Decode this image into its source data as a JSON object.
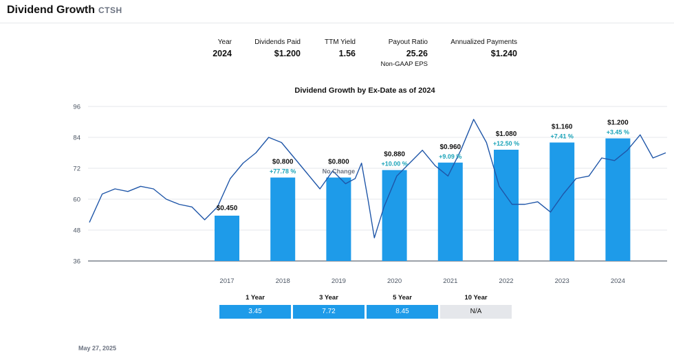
{
  "header": {
    "title": "Dividend Growth",
    "ticker": "CTSH"
  },
  "stats": [
    {
      "label": "Year",
      "value": "2024",
      "sub": ""
    },
    {
      "label": "Dividends Paid",
      "value": "$1.200",
      "sub": ""
    },
    {
      "label": "TTM Yield",
      "value": "1.56",
      "sub": ""
    },
    {
      "label": "Payout Ratio",
      "value": "25.26",
      "sub": "Non-GAAP EPS"
    },
    {
      "label": "Annualized Payments",
      "value": "$1.240",
      "sub": ""
    }
  ],
  "chart_data": {
    "type": "bar",
    "title": "Dividend Growth by Ex-Date as of 2024",
    "categories": [
      "2017",
      "2018",
      "2019",
      "2020",
      "2021",
      "2022",
      "2023",
      "2024"
    ],
    "bar_labels": [
      "$0.450",
      "$0.800",
      "$0.800",
      "$0.880",
      "$0.960",
      "$1.080",
      "$1.160",
      "$1.200"
    ],
    "growth_labels": [
      "",
      "+77.78 %",
      "No Change",
      "+10.00 %",
      "+9.09 %",
      "+12.50 %",
      "+7.41 %",
      "+3.45 %"
    ],
    "bar_heights_price_axis": [
      53.6,
      68.4,
      68.4,
      71.3,
      74.2,
      79.2,
      82.0,
      83.6
    ],
    "yticks": [
      36,
      48,
      60,
      72,
      84,
      96
    ],
    "ylim": [
      36,
      96
    ],
    "grid": true,
    "line_series": {
      "x": [
        2015.9,
        2016.1,
        2016.3,
        2016.5,
        2016.7,
        2016.9,
        2017.1,
        2017.3,
        2017.5,
        2017.7,
        2017.9,
        2018.1,
        2018.3,
        2018.5,
        2018.7,
        2018.9,
        2019.1,
        2019.3,
        2019.5,
        2019.7,
        2019.9,
        2020.05,
        2020.15,
        2020.25,
        2020.35,
        2020.5,
        2020.7,
        2020.9,
        2021.1,
        2021.3,
        2021.5,
        2021.7,
        2021.9,
        2022.1,
        2022.3,
        2022.5,
        2022.7,
        2022.9,
        2023.1,
        2023.3,
        2023.5,
        2023.7,
        2023.9,
        2024.1,
        2024.3,
        2024.5,
        2024.7,
        2024.9
      ],
      "y": [
        51,
        62,
        64,
        63,
        65,
        64,
        60,
        58,
        57,
        52,
        57,
        68,
        74,
        78,
        84,
        82,
        76,
        70,
        64,
        71,
        66,
        68,
        74,
        60,
        45,
        57,
        69,
        74,
        79,
        73,
        69,
        79,
        91,
        82,
        65,
        58,
        58,
        59,
        55,
        62,
        68,
        69,
        76,
        75,
        79,
        85,
        76,
        78
      ]
    },
    "growth_table": {
      "headers": [
        "1 Year",
        "3 Year",
        "5 Year",
        "10 Year"
      ],
      "values": [
        "3.45",
        "7.72",
        "8.45",
        "N/A"
      ]
    }
  },
  "footer": {
    "date": "May 27, 2025"
  },
  "colors": {
    "bar": "#1e9be9",
    "line": "#1f56a8",
    "growth": "#1aa3b8",
    "nochange": "#6b7280",
    "grid": "#e5e7eb"
  }
}
